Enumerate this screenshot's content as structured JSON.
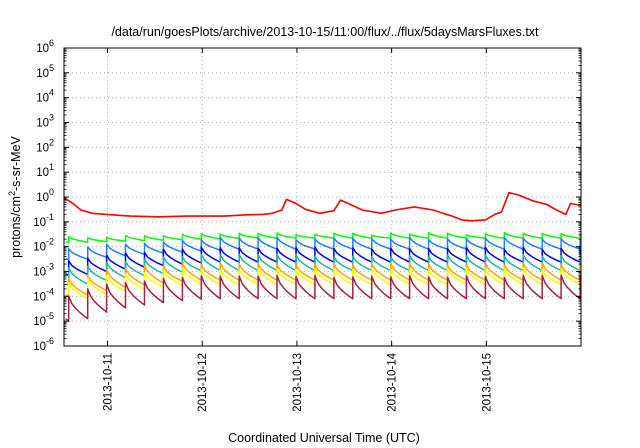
{
  "chart_data": {
    "type": "line",
    "title": "/data/run/goesPlots/archive/2013-10-15/11:00/flux/../flux/5daysMarsFluxes.txt",
    "xlabel": "Coordinated Universal Time (UTC)",
    "ylabel": {
      "pre": "protons/cm",
      "sup": "2",
      "post": "-s-sr-MeV"
    },
    "yscale": "log",
    "ylim_exponents": [
      -6,
      6
    ],
    "ytick_exponents": [
      -6,
      -5,
      -4,
      -3,
      -2,
      -1,
      0,
      1,
      2,
      3,
      4,
      5,
      6
    ],
    "ytick_base": "10",
    "xlim_days": [
      0,
      5.46
    ],
    "xticks": [
      {
        "label": "2013-10-11",
        "pos": 0.46
      },
      {
        "label": "2013-10-12",
        "pos": 1.46
      },
      {
        "label": "2013-10-13",
        "pos": 2.46
      },
      {
        "label": "2013-10-14",
        "pos": 3.46
      },
      {
        "label": "2013-10-15",
        "pos": 4.46
      }
    ],
    "grid": true,
    "legend": "none",
    "series": [
      {
        "color": "#ff0000",
        "smooth": true,
        "points": [
          [
            0,
            0.9
          ],
          [
            0.08,
            0.6
          ],
          [
            0.18,
            0.3
          ],
          [
            0.3,
            0.22
          ],
          [
            0.45,
            0.2
          ],
          [
            0.7,
            0.17
          ],
          [
            1.0,
            0.16
          ],
          [
            1.3,
            0.17
          ],
          [
            1.5,
            0.17
          ],
          [
            1.7,
            0.17
          ],
          [
            1.9,
            0.19
          ],
          [
            2.1,
            0.2
          ],
          [
            2.2,
            0.22
          ],
          [
            2.3,
            0.3
          ],
          [
            2.35,
            0.8
          ],
          [
            2.45,
            0.55
          ],
          [
            2.55,
            0.32
          ],
          [
            2.7,
            0.22
          ],
          [
            2.85,
            0.28
          ],
          [
            2.92,
            0.75
          ],
          [
            3.0,
            0.55
          ],
          [
            3.15,
            0.3
          ],
          [
            3.35,
            0.22
          ],
          [
            3.5,
            0.3
          ],
          [
            3.7,
            0.4
          ],
          [
            3.9,
            0.3
          ],
          [
            4.0,
            0.22
          ],
          [
            4.1,
            0.17
          ],
          [
            4.2,
            0.12
          ],
          [
            4.3,
            0.11
          ],
          [
            4.45,
            0.12
          ],
          [
            4.55,
            0.2
          ],
          [
            4.62,
            0.25
          ],
          [
            4.7,
            1.5
          ],
          [
            4.8,
            1.2
          ],
          [
            4.95,
            0.7
          ],
          [
            5.1,
            0.5
          ],
          [
            5.2,
            0.3
          ],
          [
            5.3,
            0.2
          ],
          [
            5.35,
            0.55
          ],
          [
            5.46,
            0.45
          ]
        ],
        "noise": 0.3
      },
      {
        "color": "#00ff00",
        "base": 0.022,
        "low_base": 0.015,
        "peak_ratio": 1.5,
        "trend_end": 1.8,
        "period": 0.2,
        "phase": 0.05
      },
      {
        "color": "#1e7fff",
        "base": 0.008,
        "low_base": 0.003,
        "peak_ratio": 2.7,
        "trend_end": 1.7,
        "period": 0.2,
        "phase": 0.05
      },
      {
        "color": "#0000ee",
        "base": 0.0024,
        "low_base": 0.0007,
        "peak_ratio": 3.6,
        "trend_end": 1.4,
        "period": 0.2,
        "phase": 0.05
      },
      {
        "color": "#20b2aa",
        "base": 0.0011,
        "low_base": 0.00028,
        "peak_ratio": 4.0,
        "trend_end": 1.3,
        "period": 0.2,
        "phase": 0.05
      },
      {
        "color": "#ffa500",
        "base": 0.00045,
        "low_base": 0.0001,
        "peak_ratio": 4.5,
        "trend_end": 1.2,
        "period": 0.2,
        "phase": 0.05
      },
      {
        "color": "#ffff00",
        "base": 0.0003,
        "low_base": 7e-05,
        "peak_ratio": 4.2,
        "trend_end": 1.2,
        "period": 0.2,
        "phase": 0.05
      },
      {
        "color": "#a0204f",
        "base": 8e-05,
        "low_base": 1e-05,
        "peak_ratio": 8.0,
        "trend_end": 1.3,
        "period": 0.2,
        "phase": 0.05
      }
    ]
  }
}
